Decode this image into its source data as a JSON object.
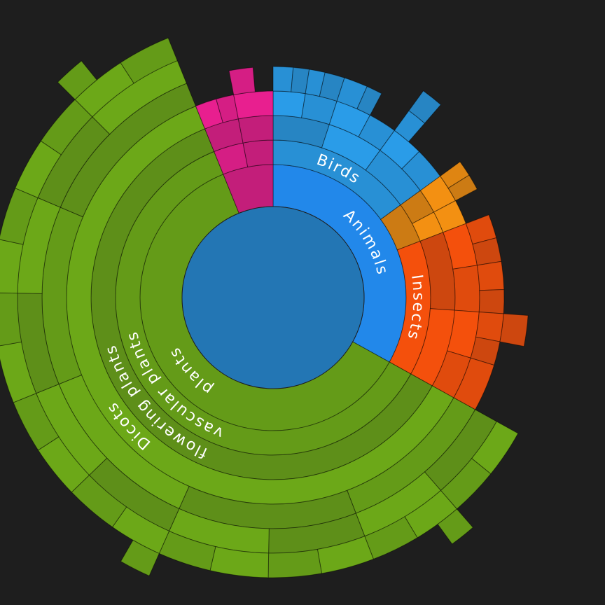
{
  "chart_data": {
    "type": "sunburst",
    "children": [
      {
        "name": "Animals",
        "value": 119,
        "color": "#2288ea",
        "children": [
          {
            "name": "Birds",
            "value": 54,
            "color": "#2a9ce8",
            "children": [
              {
                "value": 18,
                "children": [
                  {
                    "value": 9,
                    "children": [
                      {
                        "value": 5
                      },
                      {
                        "value": 4
                      }
                    ]
                  },
                  {
                    "value": 9,
                    "children": [
                      {
                        "value": 4
                      },
                      {
                        "value": 5
                      }
                    ]
                  }
                ]
              },
              {
                "value": 18,
                "children": [
                  {
                    "value": 10,
                    "children": [
                      {
                        "value": 6
                      },
                      {
                        "value": 4
                      }
                    ]
                  },
                  {
                    "value": 8
                  }
                ]
              },
              {
                "value": 18,
                "children": [
                  {
                    "value": 9,
                    "children": [
                      {
                        "value": 5,
                        "children": [
                          {
                            "value": 5
                          }
                        ]
                      }
                    ]
                  },
                  {
                    "value": 9
                  }
                ]
              }
            ]
          },
          {
            "value": 15,
            "color": "#f39012",
            "children": [
              {
                "value": 8,
                "children": [
                  {
                    "value": 8,
                    "children": [
                      {
                        "value": 4
                      },
                      {
                        "value": 4
                      }
                    ]
                  }
                ]
              },
              {
                "value": 7,
                "children": [
                  {
                    "value": 7
                  }
                ]
              }
            ]
          },
          {
            "name": "Insects",
            "value": 50,
            "color": "#f4500c",
            "children": [
              {
                "value": 25,
                "children": [
                  {
                    "value": 12,
                    "children": [
                      {
                        "value": 6
                      },
                      {
                        "value": 6
                      }
                    ]
                  },
                  {
                    "value": 13,
                    "children": [
                      {
                        "value": 7
                      },
                      {
                        "value": 6
                      }
                    ]
                  }
                ]
              },
              {
                "value": 25,
                "children": [
                  {
                    "value": 13,
                    "children": [
                      {
                        "value": 7,
                        "children": [
                          {
                            "value": 7
                          }
                        ]
                      },
                      {
                        "value": 6
                      }
                    ]
                  },
                  {
                    "value": 12,
                    "children": [
                      {
                        "value": 12
                      }
                    ]
                  }
                ]
              }
            ]
          }
        ]
      },
      {
        "name": "plants",
        "value": 219,
        "color": "#6ca818",
        "children": [
          {
            "name": "vascular plants",
            "value": 219,
            "children": [
              {
                "name": "flowering plants",
                "value": 219,
                "children": [
                  {
                    "name": "Dicots",
                    "value": 219,
                    "children": [
                      {
                        "value": 40,
                        "children": [
                          {
                            "value": 20,
                            "children": [
                              {
                                "value": 10
                              },
                              {
                                "value": 10
                              }
                            ]
                          },
                          {
                            "value": 20,
                            "children": [
                              {
                                "value": 10,
                                "children": [
                                  {
                                    "value": 5
                                  }
                                ]
                              },
                              {
                                "value": 10
                              }
                            ]
                          }
                        ]
                      },
                      {
                        "value": 45,
                        "children": [
                          {
                            "value": 22,
                            "children": [
                              {
                                "value": 11
                              },
                              {
                                "value": 11
                              }
                            ]
                          },
                          {
                            "value": 23,
                            "children": [
                              {
                                "value": 12
                              },
                              {
                                "value": 11
                              }
                            ]
                          }
                        ]
                      },
                      {
                        "value": 44,
                        "children": [
                          {
                            "value": 22,
                            "children": [
                              {
                                "value": 11,
                                "children": [
                                  {
                                    "value": 6
                                  }
                                ]
                              },
                              {
                                "value": 11
                              }
                            ]
                          },
                          {
                            "value": 22,
                            "children": [
                              {
                                "value": 11
                              },
                              {
                                "value": 11
                              }
                            ]
                          }
                        ]
                      },
                      {
                        "value": 45,
                        "children": [
                          {
                            "value": 23,
                            "children": [
                              {
                                "value": 12
                              },
                              {
                                "value": 11
                              }
                            ]
                          },
                          {
                            "value": 22,
                            "children": [
                              {
                                "value": 11
                              },
                              {
                                "value": 11
                              }
                            ]
                          }
                        ]
                      },
                      {
                        "value": 45,
                        "children": [
                          {
                            "value": 22,
                            "children": [
                              {
                                "value": 11
                              },
                              {
                                "value": 11
                              }
                            ]
                          },
                          {
                            "value": 23,
                            "children": [
                              {
                                "value": 12,
                                "children": [
                                  {
                                    "value": 6
                                  }
                                ]
                              },
                              {
                                "value": 11
                              }
                            ]
                          }
                        ]
                      }
                    ]
                  }
                ]
              }
            ]
          }
        ]
      },
      {
        "value": 22,
        "color": "#e81f8f",
        "children": [
          {
            "value": 11,
            "children": [
              {
                "value": 11,
                "children": [
                  {
                    "value": 6
                  },
                  {
                    "value": 5
                  }
                ]
              }
            ]
          },
          {
            "value": 11,
            "children": [
              {
                "value": 11,
                "children": [
                  {
                    "value": 11,
                    "children": [
                      {
                        "value": 6
                      }
                    ]
                  }
                ]
              }
            ]
          }
        ]
      }
    ]
  }
}
